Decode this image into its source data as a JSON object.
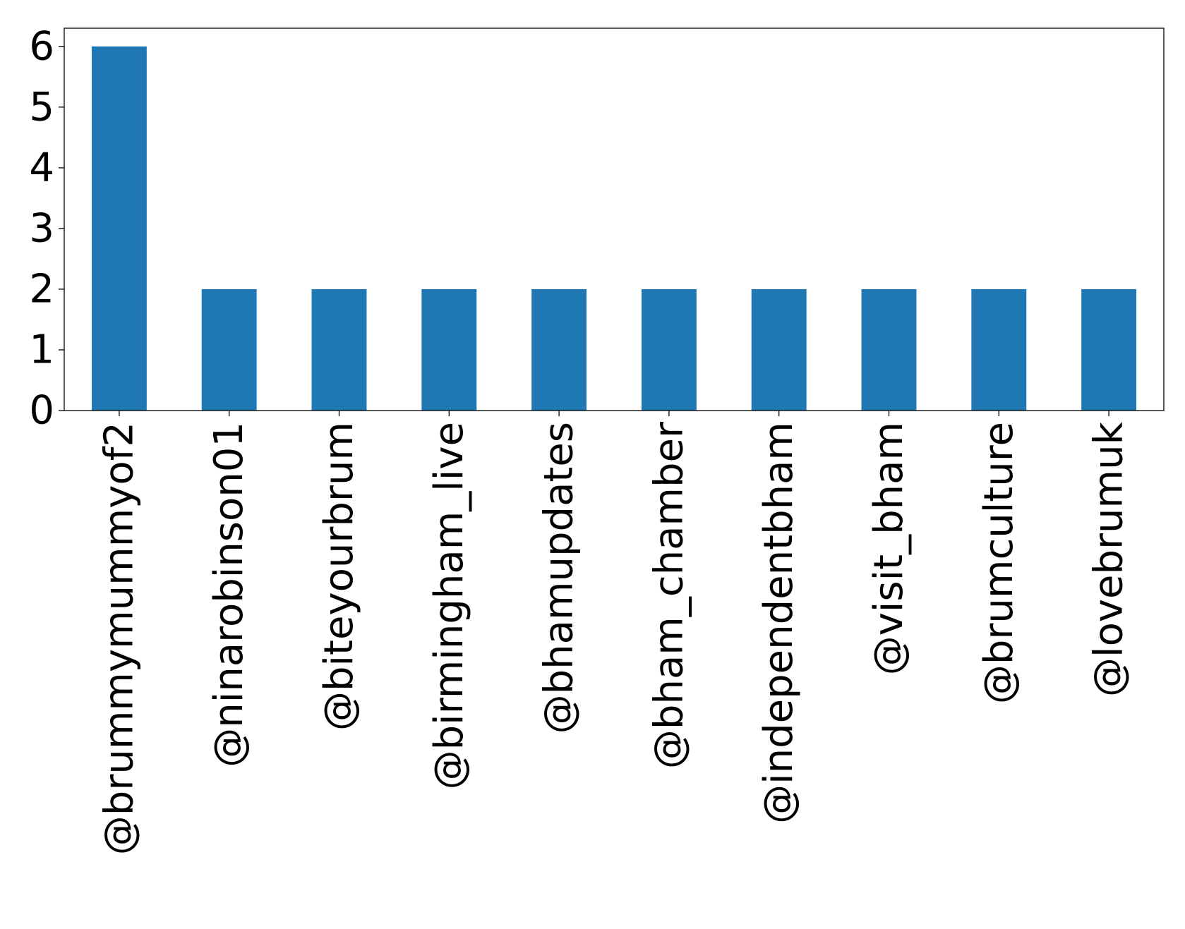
{
  "chart_data": {
    "type": "bar",
    "title": "",
    "xlabel": "",
    "ylabel": "",
    "categories": [
      "@brummymummyof2",
      "@ninarobinson01",
      "@biteyourbrum",
      "@birmingham_live",
      "@bhamupdates",
      "@bham_chamber",
      "@independentbham",
      "@visit_bham",
      "@brumculture",
      "@lovebrumuk"
    ],
    "values": [
      6,
      2,
      2,
      2,
      2,
      2,
      2,
      2,
      2,
      2
    ],
    "ylim": [
      0,
      6.3
    ],
    "yticks": [
      0,
      1,
      2,
      3,
      4,
      5,
      6
    ],
    "grid": false,
    "legend": "none",
    "bar_color": "#1f77b4",
    "x_tick_rotation": "vertical"
  }
}
